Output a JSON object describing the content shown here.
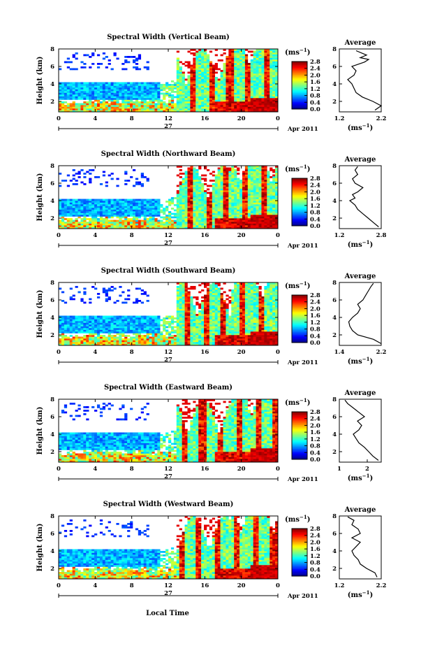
{
  "shared": {
    "ylabel": "Height (km)",
    "xlabel": "Local Time",
    "day_label": "27",
    "month_label": "Apr 2011",
    "unit_label": "(ms",
    "unit_exp": "−1",
    "avg_title": "Average"
  },
  "chart_data": [
    {
      "type": "heatmap",
      "title": "Spectral Width (Vertical Beam)",
      "x_ticks": [
        "0",
        "4",
        "8",
        "12",
        "16",
        "20",
        "0"
      ],
      "y_ticks": [
        "2",
        "4",
        "6",
        "8"
      ],
      "xlim": [
        0,
        24
      ],
      "ylim": [
        0.8,
        8
      ],
      "colorbar": {
        "ticks": [
          "0.0",
          "0.4",
          "0.8",
          "1.2",
          "1.6",
          "2.0",
          "2.4",
          "2.8"
        ],
        "range": [
          0,
          2.8
        ]
      },
      "average": {
        "x_ticks": [
          "1.2",
          "2.2"
        ],
        "xlim": [
          1.2,
          2.2
        ],
        "y_ticks": [
          "2",
          "4",
          "6",
          "8"
        ],
        "ylim": [
          0.8,
          8
        ],
        "profile": [
          [
            2.05,
            1.0
          ],
          [
            2.2,
            1.5
          ],
          [
            2.0,
            2.0
          ],
          [
            1.75,
            2.5
          ],
          [
            1.6,
            3.0
          ],
          [
            1.55,
            3.5
          ],
          [
            1.5,
            4.0
          ],
          [
            1.4,
            4.5
          ],
          [
            1.55,
            5.0
          ],
          [
            1.6,
            5.5
          ],
          [
            1.5,
            6.0
          ],
          [
            1.8,
            6.5
          ],
          [
            1.9,
            6.8
          ],
          [
            1.7,
            7.0
          ],
          [
            1.85,
            7.3
          ],
          [
            1.6,
            7.8
          ]
        ]
      }
    },
    {
      "type": "heatmap",
      "title": "Spectral Width (Northward Beam)",
      "x_ticks": [
        "0",
        "4",
        "8",
        "12",
        "16",
        "20",
        "0"
      ],
      "y_ticks": [
        "2",
        "4",
        "6",
        "8"
      ],
      "xlim": [
        0,
        24
      ],
      "ylim": [
        0.8,
        8
      ],
      "colorbar": {
        "ticks": [
          "0.0",
          "0.4",
          "0.8",
          "1.2",
          "1.6",
          "2.0",
          "2.4",
          "2.8"
        ],
        "range": [
          0,
          2.8
        ]
      },
      "average": {
        "x_ticks": [
          "1.2",
          "2.8"
        ],
        "xlim": [
          1.2,
          2.8
        ],
        "y_ticks": [
          "2",
          "4",
          "6",
          "8"
        ],
        "ylim": [
          0.8,
          8
        ],
        "profile": [
          [
            2.7,
            1.0
          ],
          [
            2.5,
            1.5
          ],
          [
            2.3,
            2.0
          ],
          [
            2.1,
            2.5
          ],
          [
            1.9,
            3.0
          ],
          [
            1.8,
            3.5
          ],
          [
            1.6,
            4.0
          ],
          [
            1.8,
            4.3
          ],
          [
            1.7,
            4.7
          ],
          [
            1.9,
            5.0
          ],
          [
            2.1,
            5.5
          ],
          [
            1.8,
            6.0
          ],
          [
            1.7,
            6.5
          ],
          [
            1.9,
            7.0
          ],
          [
            1.8,
            7.5
          ],
          [
            1.9,
            7.9
          ]
        ]
      }
    },
    {
      "type": "heatmap",
      "title": "Spectral Width (Southward Beam)",
      "x_ticks": [
        "0",
        "4",
        "8",
        "12",
        "16",
        "20",
        "0"
      ],
      "y_ticks": [
        "2",
        "4",
        "6",
        "8"
      ],
      "xlim": [
        0,
        24
      ],
      "ylim": [
        0.8,
        8
      ],
      "colorbar": {
        "ticks": [
          "0.0",
          "0.4",
          "0.8",
          "1.2",
          "1.6",
          "2.0",
          "2.4",
          "2.8"
        ],
        "range": [
          0,
          2.8
        ]
      },
      "average": {
        "x_ticks": [
          "1.4",
          "2.2"
        ],
        "xlim": [
          1.4,
          2.2
        ],
        "y_ticks": [
          "2",
          "4",
          "6",
          "8"
        ],
        "ylim": [
          0.8,
          8
        ],
        "profile": [
          [
            2.2,
            1.0
          ],
          [
            2.05,
            1.5
          ],
          [
            1.75,
            2.0
          ],
          [
            1.65,
            2.5
          ],
          [
            1.6,
            3.0
          ],
          [
            1.58,
            3.5
          ],
          [
            1.65,
            4.0
          ],
          [
            1.75,
            4.5
          ],
          [
            1.8,
            5.0
          ],
          [
            1.75,
            5.5
          ],
          [
            1.85,
            6.0
          ],
          [
            1.9,
            6.5
          ],
          [
            1.95,
            7.0
          ],
          [
            2.0,
            7.5
          ],
          [
            2.05,
            7.9
          ]
        ]
      }
    },
    {
      "type": "heatmap",
      "title": "Spectral Width (Eastward Beam)",
      "x_ticks": [
        "0",
        "4",
        "8",
        "12",
        "16",
        "20",
        "0"
      ],
      "y_ticks": [
        "2",
        "4",
        "6",
        "8"
      ],
      "xlim": [
        0,
        24
      ],
      "ylim": [
        0.8,
        8
      ],
      "colorbar": {
        "ticks": [
          "0.0",
          "0.4",
          "0.8",
          "1.2",
          "1.6",
          "2.0",
          "2.4",
          "2.8"
        ],
        "range": [
          0,
          2.8
        ]
      },
      "average": {
        "x_ticks": [
          "1",
          "2"
        ],
        "xlim": [
          1.0,
          2.5
        ],
        "y_ticks": [
          "2",
          "4",
          "6",
          "8"
        ],
        "ylim": [
          0.8,
          8
        ],
        "profile": [
          [
            2.4,
            1.0
          ],
          [
            2.2,
            1.5
          ],
          [
            2.05,
            2.0
          ],
          [
            1.9,
            2.5
          ],
          [
            1.7,
            3.0
          ],
          [
            1.6,
            3.5
          ],
          [
            1.5,
            4.0
          ],
          [
            1.7,
            4.5
          ],
          [
            1.8,
            5.0
          ],
          [
            1.65,
            5.5
          ],
          [
            1.9,
            6.0
          ],
          [
            1.7,
            6.5
          ],
          [
            1.5,
            7.0
          ],
          [
            1.3,
            7.5
          ],
          [
            1.2,
            7.9
          ]
        ]
      }
    },
    {
      "type": "heatmap",
      "title": "Spectral Width (Westward Beam)",
      "x_ticks": [
        "0",
        "4",
        "8",
        "12",
        "16",
        "20",
        "0"
      ],
      "y_ticks": [
        "2",
        "4",
        "6",
        "8"
      ],
      "xlim": [
        0,
        24
      ],
      "ylim": [
        0.8,
        8
      ],
      "colorbar": {
        "ticks": [
          "0.0",
          "0.4",
          "0.8",
          "1.2",
          "1.6",
          "2.0",
          "2.4",
          "2.8"
        ],
        "range": [
          0,
          2.8
        ]
      },
      "average": {
        "x_ticks": [
          "1.2",
          "2.2"
        ],
        "xlim": [
          1.2,
          2.2
        ],
        "y_ticks": [
          "2",
          "4",
          "6",
          "8"
        ],
        "ylim": [
          0.8,
          8
        ],
        "profile": [
          [
            2.1,
            1.0
          ],
          [
            2.05,
            1.5
          ],
          [
            1.85,
            2.0
          ],
          [
            1.7,
            2.5
          ],
          [
            1.65,
            3.0
          ],
          [
            1.55,
            3.5
          ],
          [
            1.5,
            4.0
          ],
          [
            1.6,
            4.5
          ],
          [
            1.7,
            5.0
          ],
          [
            1.5,
            5.5
          ],
          [
            1.7,
            6.0
          ],
          [
            1.65,
            6.5
          ],
          [
            1.5,
            7.0
          ],
          [
            1.55,
            7.5
          ],
          [
            1.4,
            7.9
          ]
        ]
      }
    }
  ]
}
